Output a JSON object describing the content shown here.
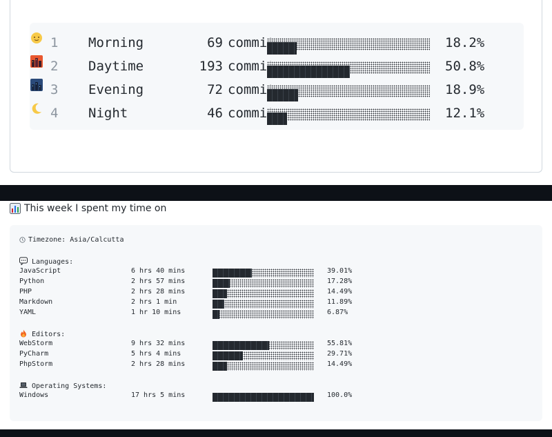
{
  "time_of_day": [
    {
      "idx": "1",
      "icon": "sun-face-icon",
      "name": "Morning",
      "count": "69",
      "unit": "commits",
      "pct": "18.2%",
      "fraction": 0.182
    },
    {
      "idx": "2",
      "icon": "cityscape-sunset-icon",
      "name": "Daytime",
      "count": "193",
      "unit": "commits",
      "pct": "50.8%",
      "fraction": 0.508
    },
    {
      "idx": "3",
      "icon": "night-city-icon",
      "name": "Evening",
      "count": "72",
      "unit": "commits",
      "pct": "18.9%",
      "fraction": 0.189
    },
    {
      "idx": "4",
      "icon": "crescent-moon-icon",
      "name": "Night",
      "count": "46",
      "unit": "commits",
      "pct": "12.1%",
      "fraction": 0.121
    }
  ],
  "week": {
    "heading": "This week I spent my time on",
    "timezone_line": "Timezone: Asia/Calcutta",
    "languages_title": "Languages:",
    "languages": [
      {
        "name": "JavaScript",
        "duration": "6 hrs 40 mins",
        "pct": "39.01%",
        "fraction": 0.3901
      },
      {
        "name": "Python",
        "duration": "2 hrs 57 mins",
        "pct": "17.28%",
        "fraction": 0.1728
      },
      {
        "name": "PHP",
        "duration": "2 hrs 28 mins",
        "pct": "14.49%",
        "fraction": 0.1449
      },
      {
        "name": "Markdown",
        "duration": "2 hrs 1 min",
        "pct": "11.89%",
        "fraction": 0.1189
      },
      {
        "name": "YAML",
        "duration": "1 hr 10 mins",
        "pct": "6.87%",
        "fraction": 0.0687
      }
    ],
    "editors_title": "Editors:",
    "editors": [
      {
        "name": "WebStorm",
        "duration": "9 hrs 32 mins",
        "pct": "55.81%",
        "fraction": 0.5581
      },
      {
        "name": "PyCharm",
        "duration": "5 hrs 4 mins",
        "pct": "29.71%",
        "fraction": 0.2971
      },
      {
        "name": "PhpStorm",
        "duration": "2 hrs 28 mins",
        "pct": "14.49%",
        "fraction": 0.1449
      }
    ],
    "os_title": "Operating Systems:",
    "os": [
      {
        "name": "Windows",
        "duration": "17 hrs 5 mins",
        "pct": "100.0%",
        "fraction": 1.0
      }
    ]
  },
  "colors": {
    "bar": "#24292f",
    "block_bg": "#f6f8fa",
    "divider": "#0d1117"
  }
}
